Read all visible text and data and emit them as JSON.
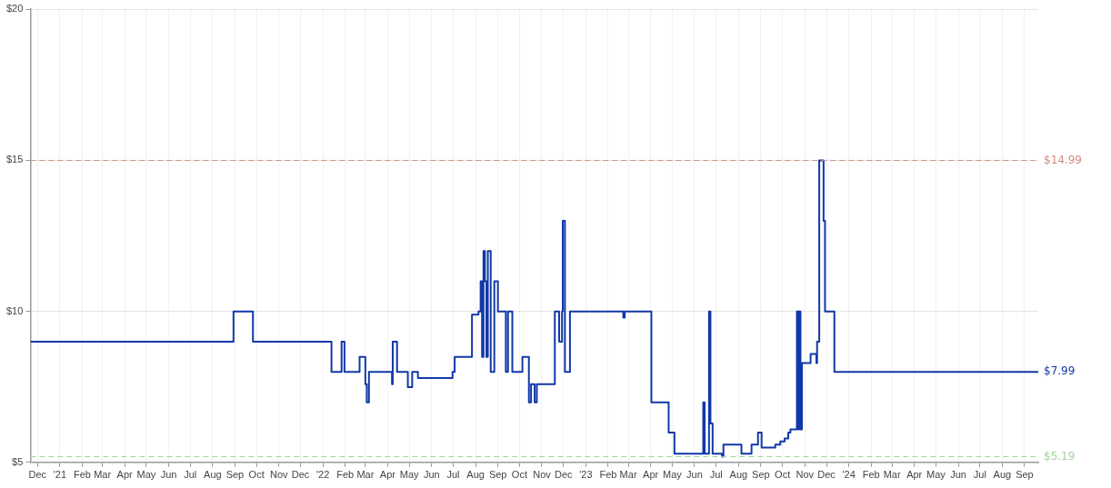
{
  "chart_data": {
    "type": "step",
    "xlim": [
      "2020-11-21",
      "2024-09-20"
    ],
    "ylim": [
      5,
      20
    ],
    "yticks": [
      {
        "value": 5,
        "label": "$5"
      },
      {
        "value": 10,
        "label": "$10"
      },
      {
        "value": 15,
        "label": "$15"
      },
      {
        "value": 20,
        "label": "$20"
      }
    ],
    "xticks": [
      {
        "value": "2020-12-01",
        "label": "Dec"
      },
      {
        "value": "2021-01-01",
        "label": "'21"
      },
      {
        "value": "2021-02-01",
        "label": "Feb"
      },
      {
        "value": "2021-03-01",
        "label": "Mar"
      },
      {
        "value": "2021-04-01",
        "label": "Apr"
      },
      {
        "value": "2021-05-01",
        "label": "May"
      },
      {
        "value": "2021-06-01",
        "label": "Jun"
      },
      {
        "value": "2021-07-01",
        "label": "Jul"
      },
      {
        "value": "2021-08-01",
        "label": "Aug"
      },
      {
        "value": "2021-09-01",
        "label": "Sep"
      },
      {
        "value": "2021-10-01",
        "label": "Oct"
      },
      {
        "value": "2021-11-01",
        "label": "Nov"
      },
      {
        "value": "2021-12-01",
        "label": "Dec"
      },
      {
        "value": "2022-01-01",
        "label": "'22"
      },
      {
        "value": "2022-02-01",
        "label": "Feb"
      },
      {
        "value": "2022-03-01",
        "label": "Mar"
      },
      {
        "value": "2022-04-01",
        "label": "Apr"
      },
      {
        "value": "2022-05-01",
        "label": "May"
      },
      {
        "value": "2022-06-01",
        "label": "Jun"
      },
      {
        "value": "2022-07-01",
        "label": "Jul"
      },
      {
        "value": "2022-08-01",
        "label": "Aug"
      },
      {
        "value": "2022-09-01",
        "label": "Sep"
      },
      {
        "value": "2022-10-01",
        "label": "Oct"
      },
      {
        "value": "2022-11-01",
        "label": "Nov"
      },
      {
        "value": "2022-12-01",
        "label": "Dec"
      },
      {
        "value": "2023-01-01",
        "label": "'23"
      },
      {
        "value": "2023-02-01",
        "label": "Feb"
      },
      {
        "value": "2023-03-01",
        "label": "Mar"
      },
      {
        "value": "2023-04-01",
        "label": "Apr"
      },
      {
        "value": "2023-05-01",
        "label": "May"
      },
      {
        "value": "2023-06-01",
        "label": "Jun"
      },
      {
        "value": "2023-07-01",
        "label": "Jul"
      },
      {
        "value": "2023-08-01",
        "label": "Aug"
      },
      {
        "value": "2023-09-01",
        "label": "Sep"
      },
      {
        "value": "2023-10-01",
        "label": "Oct"
      },
      {
        "value": "2023-11-01",
        "label": "Nov"
      },
      {
        "value": "2023-12-01",
        "label": "Dec"
      },
      {
        "value": "2024-01-01",
        "label": "'24"
      },
      {
        "value": "2024-02-01",
        "label": "Feb"
      },
      {
        "value": "2024-03-01",
        "label": "Mar"
      },
      {
        "value": "2024-04-01",
        "label": "Apr"
      },
      {
        "value": "2024-05-01",
        "label": "May"
      },
      {
        "value": "2024-06-01",
        "label": "Jun"
      },
      {
        "value": "2024-07-01",
        "label": "Jul"
      },
      {
        "value": "2024-08-01",
        "label": "Aug"
      },
      {
        "value": "2024-09-01",
        "label": "Sep"
      }
    ],
    "grid": true,
    "legend": false,
    "marker": "none",
    "line_style": "solid",
    "series": [
      {
        "color": "#1238a8",
        "x": [
          "2020-11-21",
          "2021-08-30",
          "2021-09-26",
          "2022-01-13",
          "2022-01-27",
          "2022-01-31",
          "2022-02-21",
          "2022-03-01",
          "2022-03-03",
          "2022-03-06",
          "2022-04-07",
          "2022-04-08",
          "2022-04-14",
          "2022-04-29",
          "2022-05-05",
          "2022-05-13",
          "2022-06-30",
          "2022-07-03",
          "2022-07-27",
          "2022-08-05",
          "2022-08-08",
          "2022-08-10",
          "2022-08-12",
          "2022-08-14",
          "2022-08-16",
          "2022-08-18",
          "2022-08-22",
          "2022-08-27",
          "2022-09-01",
          "2022-09-12",
          "2022-09-15",
          "2022-09-21",
          "2022-10-05",
          "2022-10-14",
          "2022-10-17",
          "2022-10-22",
          "2022-10-25",
          "2022-11-19",
          "2022-11-25",
          "2022-11-29",
          "2022-11-30",
          "2022-12-03",
          "2022-12-10",
          "2023-02-22",
          "2023-02-24",
          "2023-04-02",
          "2023-04-26",
          "2023-05-04",
          "2023-06-13",
          "2023-06-15",
          "2023-06-21",
          "2023-06-23",
          "2023-06-26",
          "2023-07-09",
          "2023-07-11",
          "2023-08-05",
          "2023-08-19",
          "2023-08-28",
          "2023-09-02",
          "2023-09-21",
          "2023-09-28",
          "2023-10-04",
          "2023-10-09",
          "2023-10-12",
          "2023-10-21",
          "2023-10-23",
          "2023-10-24",
          "2023-10-26",
          "2023-10-28",
          "2023-11-09",
          "2023-11-17",
          "2023-11-18",
          "2023-11-21",
          "2023-11-27",
          "2023-11-29",
          "2023-12-12",
          "2024-09-20"
        ],
        "values": [
          8.99,
          9.99,
          8.99,
          7.99,
          8.99,
          7.99,
          8.49,
          7.59,
          6.99,
          7.99,
          7.59,
          8.99,
          7.99,
          7.49,
          7.99,
          7.79,
          7.99,
          8.49,
          9.89,
          9.99,
          10.99,
          8.49,
          11.99,
          10.99,
          8.49,
          11.99,
          7.99,
          10.99,
          9.99,
          7.99,
          9.99,
          7.99,
          8.49,
          6.99,
          7.59,
          6.99,
          7.59,
          9.99,
          8.99,
          9.99,
          12.99,
          7.99,
          9.99,
          9.79,
          9.99,
          6.99,
          5.99,
          5.29,
          6.99,
          5.29,
          9.99,
          6.29,
          5.29,
          5.19,
          5.59,
          5.29,
          5.59,
          5.99,
          5.49,
          5.59,
          5.69,
          5.79,
          5.99,
          6.09,
          9.99,
          6.09,
          9.99,
          6.09,
          8.29,
          8.59,
          8.29,
          8.99,
          14.99,
          12.99,
          9.99,
          7.99,
          7.99
        ]
      }
    ],
    "ref_lines": [
      {
        "axis": "y",
        "value": 14.99,
        "label": "$14.99",
        "color": "#d08a80",
        "line_style": "dashed"
      },
      {
        "axis": "y",
        "value": 5.19,
        "label": "$5.19",
        "color": "#9fd49a",
        "line_style": "dashed"
      }
    ],
    "annotations": [
      {
        "text": "$7.99",
        "x": "2024-09-20",
        "y": 7.99
      }
    ]
  }
}
